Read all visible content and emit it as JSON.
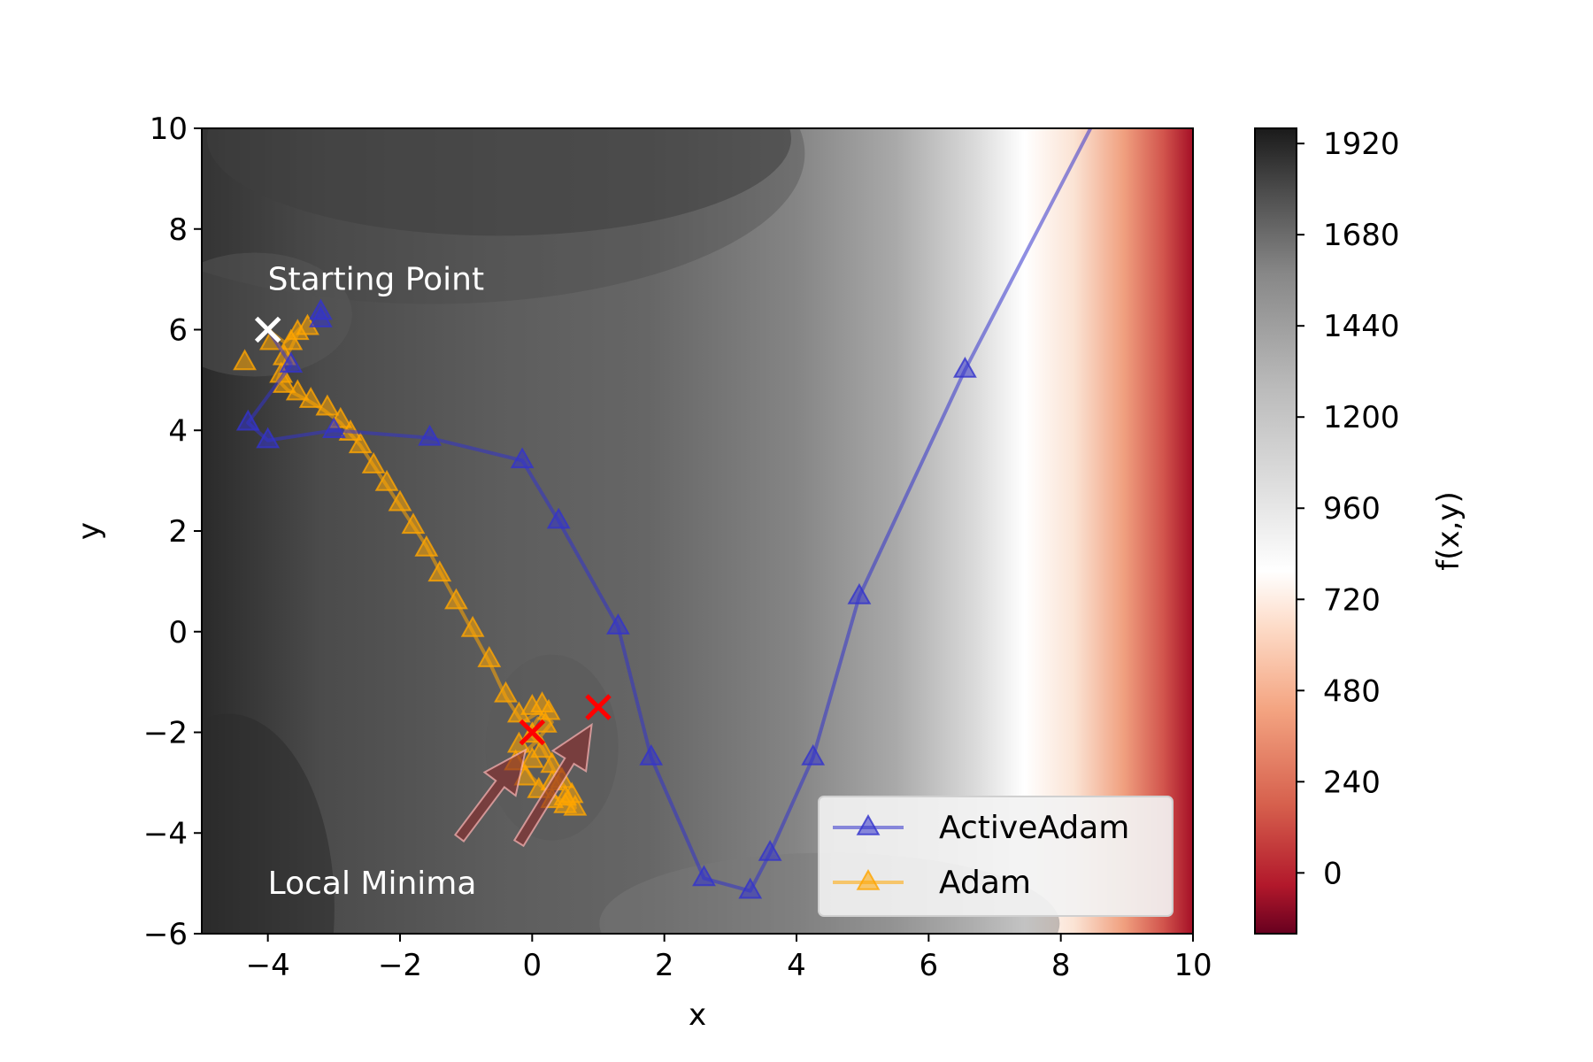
{
  "chart_data": {
    "type": "contour",
    "xlabel": "x",
    "ylabel": "y",
    "xlim": [
      -5,
      10
    ],
    "ylim": [
      -6,
      10
    ],
    "x_ticks": [
      {
        "value": -4,
        "label": "−4"
      },
      {
        "value": -2,
        "label": "−2"
      },
      {
        "value": 0,
        "label": "0"
      },
      {
        "value": 2,
        "label": "2"
      },
      {
        "value": 4,
        "label": "4"
      },
      {
        "value": 6,
        "label": "6"
      },
      {
        "value": 8,
        "label": "8"
      },
      {
        "value": 10,
        "label": "10"
      }
    ],
    "y_ticks": [
      {
        "value": -6,
        "label": "−6"
      },
      {
        "value": -4,
        "label": "−4"
      },
      {
        "value": -2,
        "label": "−2"
      },
      {
        "value": 0,
        "label": "0"
      },
      {
        "value": 2,
        "label": "2"
      },
      {
        "value": 4,
        "label": "4"
      },
      {
        "value": 6,
        "label": "6"
      },
      {
        "value": 8,
        "label": "8"
      },
      {
        "value": 10,
        "label": "10"
      }
    ],
    "colorbar": {
      "label": "f(x,y)",
      "colormap": "RdGy",
      "range": [
        -160,
        1960
      ],
      "ticks": [
        {
          "value": 0,
          "label": "0"
        },
        {
          "value": 240,
          "label": "240"
        },
        {
          "value": 480,
          "label": "480"
        },
        {
          "value": 720,
          "label": "720"
        },
        {
          "value": 960,
          "label": "960"
        },
        {
          "value": 1200,
          "label": "1200"
        },
        {
          "value": 1440,
          "label": "1440"
        },
        {
          "value": 1680,
          "label": "1680"
        },
        {
          "value": 1920,
          "label": "1920"
        }
      ]
    },
    "series": [
      {
        "name": "ActiveAdam",
        "color": "#3333cc",
        "points": [
          [
            -4.0,
            6.0
          ],
          [
            -3.65,
            5.3
          ],
          [
            -4.3,
            4.15
          ],
          [
            -4.0,
            3.8
          ],
          [
            -3.0,
            4.0
          ],
          [
            -1.55,
            3.85
          ],
          [
            -0.15,
            3.4
          ],
          [
            0.4,
            2.2
          ],
          [
            1.3,
            0.1
          ],
          [
            1.8,
            -2.5
          ],
          [
            2.6,
            -4.9
          ],
          [
            3.3,
            -5.15
          ],
          [
            3.6,
            -4.4
          ],
          [
            4.25,
            -2.5
          ],
          [
            4.95,
            0.7
          ],
          [
            6.55,
            5.2
          ],
          [
            8.45,
            10.0
          ]
        ],
        "markers": [
          [
            -3.2,
            6.35
          ],
          [
            -3.2,
            6.2
          ],
          [
            -3.65,
            5.3
          ],
          [
            -4.3,
            4.15
          ],
          [
            -4.0,
            3.8
          ],
          [
            -3.0,
            4.0
          ],
          [
            -1.55,
            3.85
          ],
          [
            -0.15,
            3.4
          ],
          [
            0.4,
            2.2
          ],
          [
            1.3,
            0.1
          ],
          [
            1.8,
            -2.5
          ],
          [
            2.6,
            -4.9
          ],
          [
            3.3,
            -5.15
          ],
          [
            3.6,
            -4.4
          ],
          [
            4.25,
            -2.5
          ],
          [
            4.95,
            0.7
          ],
          [
            6.55,
            5.2
          ]
        ]
      },
      {
        "name": "Adam",
        "color": "#ffa500",
        "points": [
          [
            -4.0,
            6.0
          ],
          [
            -3.75,
            5.75
          ],
          [
            -3.6,
            5.9
          ],
          [
            -3.5,
            6.05
          ],
          [
            -3.7,
            5.5
          ],
          [
            -3.85,
            5.0
          ],
          [
            -3.7,
            4.8
          ],
          [
            -3.4,
            4.6
          ],
          [
            -3.15,
            4.4
          ],
          [
            -2.9,
            4.15
          ],
          [
            -2.6,
            3.7
          ],
          [
            -2.4,
            3.3
          ],
          [
            -2.2,
            2.9
          ],
          [
            -2.0,
            2.5
          ],
          [
            -1.8,
            2.1
          ],
          [
            -1.6,
            1.7
          ],
          [
            -1.4,
            1.2
          ],
          [
            -1.15,
            0.6
          ],
          [
            -0.9,
            0.0
          ],
          [
            -0.65,
            -0.6
          ],
          [
            -0.4,
            -1.3
          ],
          [
            -0.15,
            -1.8
          ],
          [
            0.1,
            -1.6
          ],
          [
            0.3,
            -1.8
          ],
          [
            0.05,
            -2.2
          ],
          [
            -0.2,
            -2.5
          ],
          [
            0.0,
            -2.9
          ],
          [
            0.25,
            -3.2
          ],
          [
            0.5,
            -3.4
          ],
          [
            0.65,
            -3.5
          ],
          [
            0.55,
            -3.2
          ],
          [
            0.35,
            -2.8
          ],
          [
            0.15,
            -2.3
          ],
          [
            -0.05,
            -2.0
          ],
          [
            0.1,
            -1.7
          ]
        ],
        "markers": [
          [
            -4.35,
            5.35
          ],
          [
            -3.95,
            5.75
          ],
          [
            -3.65,
            5.75
          ],
          [
            -3.55,
            5.95
          ],
          [
            -3.4,
            6.05
          ],
          [
            -3.75,
            5.45
          ],
          [
            -3.8,
            5.1
          ],
          [
            -3.75,
            4.9
          ],
          [
            -3.55,
            4.75
          ],
          [
            -3.35,
            4.6
          ],
          [
            -3.1,
            4.45
          ],
          [
            -2.9,
            4.2
          ],
          [
            -2.75,
            3.95
          ],
          [
            -2.6,
            3.7
          ],
          [
            -2.4,
            3.3
          ],
          [
            -2.2,
            2.95
          ],
          [
            -2.0,
            2.55
          ],
          [
            -1.8,
            2.1
          ],
          [
            -1.6,
            1.65
          ],
          [
            -1.4,
            1.15
          ],
          [
            -1.15,
            0.6
          ],
          [
            -0.9,
            0.05
          ],
          [
            -0.65,
            -0.55
          ],
          [
            -0.4,
            -1.25
          ],
          [
            -0.2,
            -1.65
          ],
          [
            0.0,
            -1.5
          ],
          [
            0.15,
            -1.45
          ],
          [
            0.25,
            -1.6
          ],
          [
            0.2,
            -1.85
          ],
          [
            0.0,
            -2.05
          ],
          [
            -0.2,
            -2.25
          ],
          [
            -0.25,
            -2.6
          ],
          [
            -0.1,
            -2.9
          ],
          [
            0.1,
            -3.15
          ],
          [
            0.3,
            -3.35
          ],
          [
            0.5,
            -3.45
          ],
          [
            0.65,
            -3.5
          ],
          [
            0.6,
            -3.25
          ],
          [
            0.45,
            -2.95
          ],
          [
            0.3,
            -2.65
          ],
          [
            0.15,
            -2.35
          ],
          [
            0.0,
            -2.55
          ],
          [
            0.3,
            -3.0
          ],
          [
            0.5,
            -3.3
          ]
        ]
      }
    ],
    "points": {
      "start": [
        -4.0,
        6.0
      ],
      "local_minima": [
        [
          0.0,
          -2.0
        ],
        [
          1.0,
          -1.5
        ]
      ]
    },
    "annotations": [
      {
        "text": "Starting Point",
        "x": -4.0,
        "y": 7.0
      },
      {
        "text": "Local Minima",
        "x": -4.0,
        "y": -5.0
      }
    ],
    "arrows": [
      {
        "from": [
          -1.1,
          -4.1
        ],
        "to": [
          -0.1,
          -2.35
        ]
      },
      {
        "from": [
          -0.2,
          -4.2
        ],
        "to": [
          0.9,
          -1.85
        ]
      }
    ],
    "legend": {
      "placement": "lower right",
      "entries": [
        "ActiveAdam",
        "Adam"
      ]
    },
    "grid": false
  }
}
